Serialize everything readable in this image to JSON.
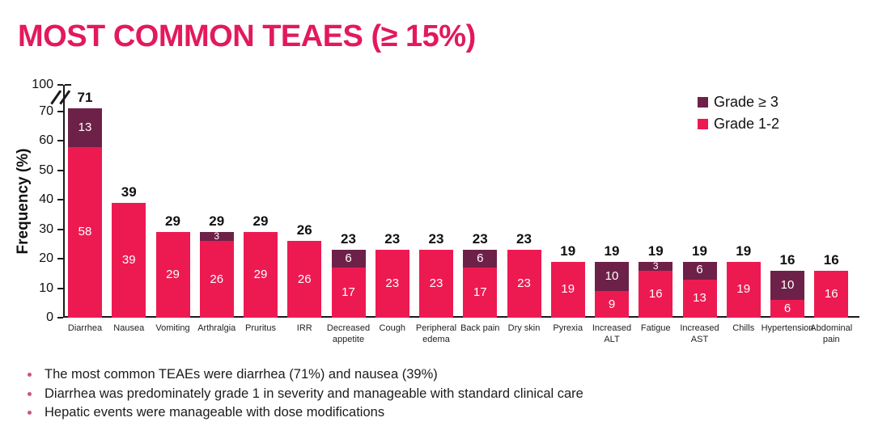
{
  "title": "MOST COMMON TEAES (≥ 15%)",
  "chart_data": {
    "type": "bar",
    "stacked": true,
    "title": "MOST COMMON TEAES (≥ 15%)",
    "xlabel": "",
    "ylabel": "Frequency (%)",
    "ylim": [
      0,
      100
    ],
    "yticks": [
      0,
      10,
      20,
      30,
      40,
      50,
      60,
      70,
      100
    ],
    "axis_break": {
      "between": [
        70,
        100
      ]
    },
    "grid": false,
    "legend_position": "top-right",
    "categories": [
      "Diarrhea",
      "Nausea",
      "Vomiting",
      "Arthralgia",
      "Pruritus",
      "IRR",
      "Decreased\nappetite",
      "Cough",
      "Peripheral\nedema",
      "Back pain",
      "Dry skin",
      "Pyrexia",
      "Increased\nALT",
      "Fatigue",
      "Increased\nAST",
      "Chills",
      "Hypertension",
      "Abdominal\npain"
    ],
    "series": [
      {
        "name": "Grade 1-2",
        "color": "#ed1a52",
        "values": [
          58,
          39,
          29,
          26,
          29,
          26,
          17,
          23,
          23,
          17,
          23,
          19,
          9,
          16,
          13,
          19,
          6,
          16
        ]
      },
      {
        "name": "Grade ≥ 3",
        "color": "#6e2148",
        "values": [
          13,
          0,
          0,
          3,
          0,
          0,
          6,
          0,
          0,
          6,
          0,
          0,
          10,
          3,
          6,
          0,
          10,
          0
        ]
      }
    ],
    "totals": [
      71,
      39,
      29,
      29,
      29,
      26,
      23,
      23,
      23,
      23,
      23,
      19,
      19,
      19,
      19,
      19,
      16,
      16
    ]
  },
  "legend": {
    "items": [
      {
        "label": "Grade ≥ 3",
        "color": "#6e2148"
      },
      {
        "label": "Grade 1-2",
        "color": "#ed1a52"
      }
    ]
  },
  "bullets": [
    "The most common TEAEs were diarrhea (71%) and nausea (39%)",
    "Diarrhea was predominately grade 1 in severity and manageable with standard clinical care",
    "Hepatic events were manageable with dose modifications"
  ],
  "colors": {
    "title": "#e3195c",
    "grade12_bar": "#ed1a52",
    "grade3_bar": "#6e2148",
    "axis": "#1a1a1a",
    "bar_value_text": "#ffffff",
    "total_label_text": "#111111",
    "bullet_dot": "#cf5677"
  }
}
